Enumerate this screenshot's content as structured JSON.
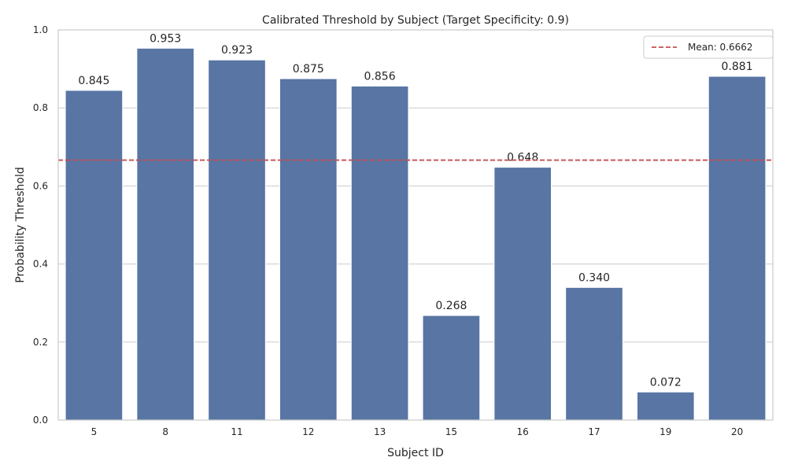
{
  "chart_data": {
    "type": "bar",
    "title": "Calibrated Threshold by Subject (Target Specificity: 0.9)",
    "xlabel": "Subject ID",
    "ylabel": "Probability Threshold",
    "categories": [
      "5",
      "8",
      "11",
      "12",
      "13",
      "15",
      "16",
      "17",
      "19",
      "20"
    ],
    "values": [
      0.845,
      0.953,
      0.923,
      0.875,
      0.856,
      0.268,
      0.648,
      0.34,
      0.072,
      0.881
    ],
    "value_labels": [
      "0.845",
      "0.953",
      "0.923",
      "0.875",
      "0.856",
      "0.268",
      "0.648",
      "0.340",
      "0.072",
      "0.881"
    ],
    "ylim": [
      0,
      1.0
    ],
    "yticks": [
      0.0,
      0.2,
      0.4,
      0.6,
      0.8,
      1.0
    ],
    "ytick_labels": [
      "0.0",
      "0.2",
      "0.4",
      "0.6",
      "0.8",
      "1.0"
    ],
    "grid": "horizontal",
    "bar_color": "#5875a4",
    "reference_line": {
      "value": 0.6662,
      "label": "Mean: 0.6662",
      "color": "#c44e52",
      "style": "dashed"
    },
    "legend": {
      "position": "top-right",
      "entries": [
        "Mean: 0.6662"
      ]
    }
  }
}
